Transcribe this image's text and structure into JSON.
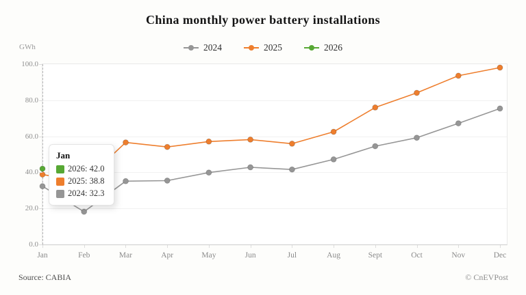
{
  "header": {
    "title": "China monthly power battery installations"
  },
  "axis": {
    "unit_label": "GWh",
    "y_ticks": [
      "0.0",
      "20.0",
      "40.0",
      "60.0",
      "80.0",
      "100.0"
    ]
  },
  "legend": {
    "items": [
      {
        "label": "2024",
        "color": "#969696"
      },
      {
        "label": "2025",
        "color": "#ee7e2d"
      },
      {
        "label": "2026",
        "color": "#57a834"
      }
    ]
  },
  "chart_data": {
    "type": "line",
    "title": "China monthly power battery installations",
    "xlabel": "",
    "ylabel": "GWh",
    "ylim": [
      0,
      100
    ],
    "grid": true,
    "legend_position": "top",
    "categories": [
      "Jan",
      "Feb",
      "Mar",
      "Apr",
      "May",
      "Jun",
      "Jul",
      "Aug",
      "Sept",
      "Oct",
      "Nov",
      "Dec"
    ],
    "series": [
      {
        "name": "2024",
        "color": "#969696",
        "values": [
          32.3,
          18.2,
          35.1,
          35.4,
          39.9,
          42.8,
          41.6,
          47.2,
          54.5,
          59.2,
          67.2,
          75.4
        ]
      },
      {
        "name": "2025",
        "color": "#ee7e2d",
        "values": [
          38.8,
          34.9,
          56.6,
          54.1,
          57.1,
          58.2,
          55.9,
          62.5,
          76.0,
          84.1,
          93.6,
          98.1
        ]
      },
      {
        "name": "2026",
        "color": "#57a834",
        "values": [
          42.0
        ]
      }
    ]
  },
  "tooltip": {
    "title": "Jan",
    "rows": [
      {
        "label": "2026",
        "value": "42.0",
        "color": "#57a834"
      },
      {
        "label": "2025",
        "value": "38.8",
        "color": "#ee7e2d"
      },
      {
        "label": "2024",
        "value": "32.3",
        "color": "#969696"
      }
    ]
  },
  "footer": {
    "source": "Source: CABIA",
    "credit": "© CnEVPost"
  }
}
